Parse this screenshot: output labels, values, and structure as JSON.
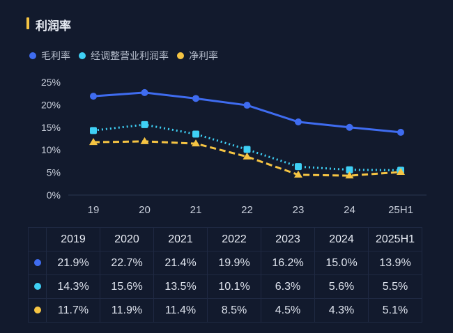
{
  "title": "利润率",
  "colors": {
    "gross": "#3f6cf0",
    "adjusted": "#3fd0f5",
    "net": "#f5c443"
  },
  "chart_data": {
    "type": "line",
    "categories": [
      "19",
      "20",
      "21",
      "22",
      "23",
      "24",
      "25H1"
    ],
    "yticks": [
      "0%",
      "5%",
      "10%",
      "15%",
      "20%",
      "25%"
    ],
    "ylim": [
      0,
      25
    ],
    "legend_position": "top-left",
    "series": [
      {
        "name": "毛利率",
        "values": [
          21.9,
          22.7,
          21.4,
          19.9,
          16.2,
          15.0,
          13.9
        ],
        "style": "solid",
        "marker": "circle",
        "color": "#3f6cf0"
      },
      {
        "name": "经调整营业利润率",
        "values": [
          14.3,
          15.6,
          13.5,
          10.1,
          6.3,
          5.6,
          5.5
        ],
        "style": "dotted",
        "marker": "square",
        "color": "#3fd0f5"
      },
      {
        "name": "净利率",
        "values": [
          11.7,
          11.9,
          11.4,
          8.5,
          4.5,
          4.3,
          5.1
        ],
        "style": "dashed",
        "marker": "triangle",
        "color": "#f5c443"
      }
    ]
  },
  "table": {
    "headers": [
      "2019",
      "2020",
      "2021",
      "2022",
      "2023",
      "2024",
      "2025H1"
    ],
    "rows": [
      [
        "21.9%",
        "22.7%",
        "21.4%",
        "19.9%",
        "16.2%",
        "15.0%",
        "13.9%"
      ],
      [
        "14.3%",
        "15.6%",
        "13.5%",
        "10.1%",
        "6.3%",
        "5.6%",
        "5.5%"
      ],
      [
        "11.7%",
        "11.9%",
        "11.4%",
        "8.5%",
        "4.5%",
        "4.3%",
        "5.1%"
      ]
    ]
  }
}
